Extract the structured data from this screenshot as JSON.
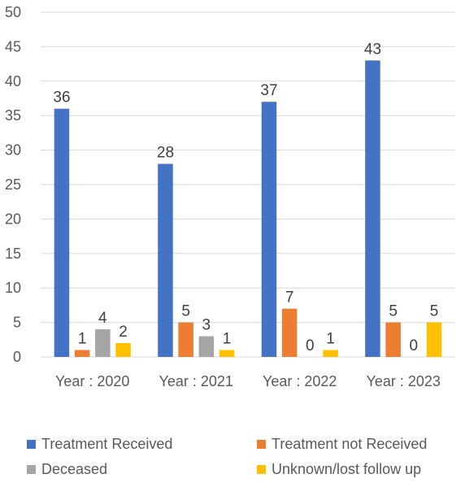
{
  "chart_data": {
    "type": "bar",
    "title": "",
    "xlabel": "",
    "ylabel": "",
    "ylim": [
      0,
      50
    ],
    "y_ticks": [
      0,
      5,
      10,
      15,
      20,
      25,
      30,
      35,
      40,
      45,
      50
    ],
    "grid": true,
    "legend_position": "bottom",
    "categories": [
      "Year : 2020",
      "Year : 2021",
      "Year : 2022",
      "Year : 2023"
    ],
    "series": [
      {
        "name": "Treatment Received",
        "color": "#4472C4",
        "values": [
          36,
          28,
          37,
          43
        ]
      },
      {
        "name": "Treatment not Received",
        "color": "#ED7D31",
        "values": [
          1,
          5,
          7,
          5
        ]
      },
      {
        "name": "Deceased",
        "color": "#A5A5A5",
        "values": [
          4,
          3,
          0,
          0
        ]
      },
      {
        "name": "Unknown/lost follow up",
        "color": "#FFC000",
        "values": [
          2,
          1,
          1,
          5
        ]
      }
    ]
  }
}
